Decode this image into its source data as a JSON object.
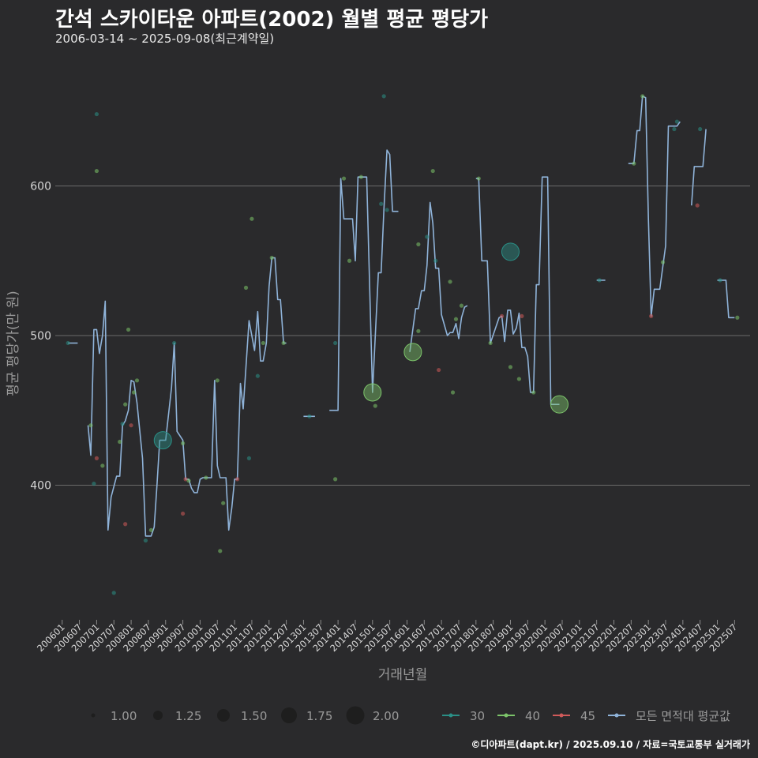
{
  "title": "간석 스카이타운 아파트(2002) 월별 평균 평당가",
  "subtitle": "2006-03-14 ~ 2025-09-08(최근계약일)",
  "footer": "©디아파트(dapt.kr) / 2025.09.10 / 자료=국토교통부 실거래가",
  "colors": {
    "background": "#2a2a2c",
    "grid": "#6a6a6a",
    "avg_line": "#8fb3d9",
    "s30": "#2a8f86",
    "s40": "#7cc46a",
    "s45": "#d05a5a"
  },
  "chart_data": {
    "type": "line",
    "xlabel": "거래년월",
    "ylabel": "평균 평당가(만 원)",
    "ylim": [
      310,
      690
    ],
    "yticks": [
      400,
      500,
      600
    ],
    "xlim": [
      2005.8,
      2025.95
    ],
    "grid": true,
    "x_tick_labels": [
      "200601",
      "200607",
      "200701",
      "200707",
      "200801",
      "200807",
      "200901",
      "200907",
      "201001",
      "201007",
      "201101",
      "201107",
      "201201",
      "201207",
      "201301",
      "201307",
      "201401",
      "201407",
      "201501",
      "201507",
      "201601",
      "201607",
      "201701",
      "201707",
      "201801",
      "201807",
      "201901",
      "201907",
      "202001",
      "202007",
      "202101",
      "202107",
      "202201",
      "202207",
      "202301",
      "202307",
      "202401",
      "202407",
      "202501",
      "202507"
    ],
    "legend_size": {
      "values": [
        "1.00",
        "1.25",
        "1.50",
        "1.75",
        "2.00"
      ]
    },
    "legend_series": [
      "30",
      "40",
      "45",
      "모든 면적대 평균값"
    ],
    "avg_series": {
      "name": "모든 면적대 평균값",
      "segments": [
        [
          [
            2006.17,
            495
          ],
          [
            2006.45,
            495
          ]
        ],
        [
          [
            2006.75,
            440
          ],
          [
            2006.83,
            420
          ],
          [
            2006.92,
            504
          ],
          [
            2007.0,
            504
          ],
          [
            2007.08,
            488
          ],
          [
            2007.17,
            500
          ],
          [
            2007.25,
            523
          ],
          [
            2007.33,
            370
          ],
          [
            2007.42,
            392
          ],
          [
            2007.58,
            406
          ],
          [
            2007.67,
            406
          ],
          [
            2007.75,
            440
          ],
          [
            2007.83,
            443
          ],
          [
            2007.92,
            450
          ],
          [
            2008.0,
            470
          ],
          [
            2008.08,
            469
          ],
          [
            2008.17,
            455
          ],
          [
            2008.33,
            418
          ],
          [
            2008.42,
            366
          ],
          [
            2008.58,
            366
          ],
          [
            2008.67,
            372
          ],
          [
            2008.75,
            400
          ],
          [
            2008.83,
            430
          ],
          [
            2009.0,
            430
          ],
          [
            2009.17,
            465
          ],
          [
            2009.25,
            495
          ],
          [
            2009.33,
            436
          ],
          [
            2009.5,
            430
          ],
          [
            2009.58,
            404
          ],
          [
            2009.67,
            404
          ],
          [
            2009.75,
            398
          ],
          [
            2009.83,
            395
          ],
          [
            2009.92,
            395
          ],
          [
            2010.0,
            404
          ],
          [
            2010.08,
            405
          ],
          [
            2010.33,
            405
          ],
          [
            2010.42,
            470
          ],
          [
            2010.5,
            413
          ],
          [
            2010.58,
            405
          ],
          [
            2010.75,
            405
          ],
          [
            2010.83,
            370
          ],
          [
            2010.92,
            385
          ],
          [
            2011.0,
            404
          ],
          [
            2011.08,
            404
          ],
          [
            2011.17,
            468
          ],
          [
            2011.25,
            451
          ],
          [
            2011.42,
            510
          ],
          [
            2011.58,
            490
          ],
          [
            2011.67,
            516
          ],
          [
            2011.75,
            483
          ],
          [
            2011.83,
            483
          ],
          [
            2011.92,
            495
          ],
          [
            2012.0,
            533
          ],
          [
            2012.08,
            552
          ],
          [
            2012.17,
            552
          ],
          [
            2012.25,
            524
          ],
          [
            2012.33,
            524
          ],
          [
            2012.42,
            495
          ],
          [
            2012.5,
            495
          ]
        ],
        [
          [
            2013.0,
            446
          ],
          [
            2013.33,
            446
          ]
        ],
        [
          [
            2013.75,
            450
          ],
          [
            2014.0,
            450
          ],
          [
            2014.08,
            605
          ],
          [
            2014.17,
            578
          ],
          [
            2014.42,
            578
          ],
          [
            2014.5,
            550
          ],
          [
            2014.58,
            606
          ],
          [
            2014.83,
            606
          ],
          [
            2015.0,
            462
          ],
          [
            2015.17,
            542
          ],
          [
            2015.25,
            542
          ],
          [
            2015.33,
            584
          ],
          [
            2015.42,
            624
          ],
          [
            2015.5,
            621
          ],
          [
            2015.58,
            583
          ],
          [
            2015.75,
            583
          ]
        ],
        [
          [
            2016.08,
            489
          ],
          [
            2016.25,
            518
          ],
          [
            2016.33,
            518
          ],
          [
            2016.42,
            530
          ],
          [
            2016.5,
            530
          ],
          [
            2016.58,
            547
          ],
          [
            2016.67,
            589
          ],
          [
            2016.75,
            575
          ],
          [
            2016.83,
            545
          ],
          [
            2016.92,
            545
          ],
          [
            2017.0,
            514
          ],
          [
            2017.17,
            500
          ],
          [
            2017.25,
            502
          ],
          [
            2017.33,
            502
          ],
          [
            2017.42,
            508
          ],
          [
            2017.5,
            498
          ],
          [
            2017.58,
            512
          ],
          [
            2017.67,
            519
          ],
          [
            2017.75,
            520
          ]
        ],
        [
          [
            2018.0,
            605
          ],
          [
            2018.08,
            605
          ],
          [
            2018.17,
            550
          ],
          [
            2018.33,
            550
          ],
          [
            2018.42,
            495
          ],
          [
            2018.67,
            512
          ],
          [
            2018.75,
            513
          ],
          [
            2018.83,
            496
          ],
          [
            2018.92,
            517
          ],
          [
            2019.0,
            517
          ],
          [
            2019.08,
            501
          ],
          [
            2019.17,
            505
          ],
          [
            2019.25,
            515
          ],
          [
            2019.33,
            492
          ],
          [
            2019.42,
            492
          ],
          [
            2019.5,
            486
          ],
          [
            2019.58,
            462
          ],
          [
            2019.67,
            462
          ],
          [
            2019.75,
            534
          ],
          [
            2019.83,
            534
          ],
          [
            2019.92,
            606
          ],
          [
            2020.08,
            606
          ],
          [
            2020.17,
            454
          ],
          [
            2020.42,
            454
          ]
        ],
        [
          [
            2021.5,
            537
          ],
          [
            2021.75,
            537
          ]
        ],
        [
          [
            2022.42,
            615
          ],
          [
            2022.58,
            615
          ],
          [
            2022.67,
            637
          ],
          [
            2022.75,
            637
          ],
          [
            2022.83,
            660
          ],
          [
            2022.92,
            659
          ],
          [
            2023.0,
            578
          ],
          [
            2023.08,
            513
          ],
          [
            2023.17,
            531
          ],
          [
            2023.33,
            531
          ],
          [
            2023.5,
            560
          ],
          [
            2023.58,
            640
          ],
          [
            2023.75,
            640
          ],
          [
            2023.83,
            640
          ],
          [
            2023.92,
            643
          ]
        ],
        [
          [
            2024.25,
            587
          ],
          [
            2024.33,
            613
          ],
          [
            2024.58,
            613
          ],
          [
            2024.67,
            638
          ]
        ],
        [
          [
            2025.0,
            537
          ],
          [
            2025.25,
            537
          ],
          [
            2025.33,
            512
          ],
          [
            2025.5,
            512
          ]
        ]
      ]
    },
    "points": [
      {
        "series": "30",
        "x": 2006.17,
        "y": 495,
        "n": 1
      },
      {
        "series": "40",
        "x": 2006.83,
        "y": 440,
        "n": 1
      },
      {
        "series": "30",
        "x": 2006.92,
        "y": 401,
        "n": 1
      },
      {
        "series": "30",
        "x": 2007.0,
        "y": 648,
        "n": 1
      },
      {
        "series": "40",
        "x": 2007.0,
        "y": 610,
        "n": 1
      },
      {
        "series": "45",
        "x": 2007.0,
        "y": 418,
        "n": 1
      },
      {
        "series": "40",
        "x": 2007.17,
        "y": 413,
        "n": 1
      },
      {
        "series": "30",
        "x": 2007.5,
        "y": 328,
        "n": 1
      },
      {
        "series": "40",
        "x": 2007.67,
        "y": 429,
        "n": 1
      },
      {
        "series": "30",
        "x": 2007.75,
        "y": 441,
        "n": 1
      },
      {
        "series": "40",
        "x": 2007.83,
        "y": 454,
        "n": 1
      },
      {
        "series": "45",
        "x": 2007.83,
        "y": 374,
        "n": 1
      },
      {
        "series": "40",
        "x": 2007.92,
        "y": 504,
        "n": 1
      },
      {
        "series": "45",
        "x": 2008.0,
        "y": 440,
        "n": 1
      },
      {
        "series": "40",
        "x": 2008.08,
        "y": 462,
        "n": 1
      },
      {
        "series": "40",
        "x": 2008.17,
        "y": 470,
        "n": 1
      },
      {
        "series": "30",
        "x": 2008.42,
        "y": 363,
        "n": 1
      },
      {
        "series": "40",
        "x": 2008.58,
        "y": 370,
        "n": 1
      },
      {
        "series": "30",
        "x": 2008.92,
        "y": 430,
        "n": 2
      },
      {
        "series": "30",
        "x": 2009.25,
        "y": 495,
        "n": 1
      },
      {
        "series": "40",
        "x": 2009.5,
        "y": 428,
        "n": 1
      },
      {
        "series": "45",
        "x": 2009.5,
        "y": 381,
        "n": 1
      },
      {
        "series": "45",
        "x": 2009.58,
        "y": 404,
        "n": 1
      },
      {
        "series": "40",
        "x": 2009.67,
        "y": 403,
        "n": 1
      },
      {
        "series": "40",
        "x": 2010.17,
        "y": 405,
        "n": 1
      },
      {
        "series": "40",
        "x": 2010.5,
        "y": 470,
        "n": 1
      },
      {
        "series": "40",
        "x": 2010.58,
        "y": 356,
        "n": 1
      },
      {
        "series": "40",
        "x": 2010.67,
        "y": 388,
        "n": 1
      },
      {
        "series": "45",
        "x": 2011.08,
        "y": 404,
        "n": 1
      },
      {
        "series": "40",
        "x": 2011.33,
        "y": 532,
        "n": 1
      },
      {
        "series": "30",
        "x": 2011.42,
        "y": 418,
        "n": 1
      },
      {
        "series": "40",
        "x": 2011.5,
        "y": 578,
        "n": 1
      },
      {
        "series": "30",
        "x": 2011.67,
        "y": 473,
        "n": 1
      },
      {
        "series": "40",
        "x": 2011.83,
        "y": 495,
        "n": 1
      },
      {
        "series": "40",
        "x": 2012.08,
        "y": 552,
        "n": 1
      },
      {
        "series": "40",
        "x": 2012.42,
        "y": 495,
        "n": 1
      },
      {
        "series": "30",
        "x": 2013.17,
        "y": 446,
        "n": 1
      },
      {
        "series": "40",
        "x": 2013.92,
        "y": 404,
        "n": 1
      },
      {
        "series": "30",
        "x": 2013.92,
        "y": 495,
        "n": 1
      },
      {
        "series": "40",
        "x": 2014.17,
        "y": 605,
        "n": 1
      },
      {
        "series": "40",
        "x": 2014.33,
        "y": 550,
        "n": 1
      },
      {
        "series": "40",
        "x": 2014.67,
        "y": 606,
        "n": 1
      },
      {
        "series": "40",
        "x": 2015.08,
        "y": 453,
        "n": 1
      },
      {
        "series": "40",
        "x": 2015.0,
        "y": 462,
        "n": 2
      },
      {
        "series": "30",
        "x": 2015.25,
        "y": 588,
        "n": 1
      },
      {
        "series": "30",
        "x": 2015.33,
        "y": 660,
        "n": 1
      },
      {
        "series": "30",
        "x": 2015.42,
        "y": 584,
        "n": 1
      },
      {
        "series": "40",
        "x": 2016.17,
        "y": 489,
        "n": 2
      },
      {
        "series": "40",
        "x": 2016.33,
        "y": 561,
        "n": 1
      },
      {
        "series": "40",
        "x": 2016.33,
        "y": 503,
        "n": 1
      },
      {
        "series": "30",
        "x": 2016.58,
        "y": 566,
        "n": 1
      },
      {
        "series": "40",
        "x": 2016.75,
        "y": 610,
        "n": 1
      },
      {
        "series": "30",
        "x": 2016.83,
        "y": 550,
        "n": 1
      },
      {
        "series": "45",
        "x": 2016.92,
        "y": 477,
        "n": 1
      },
      {
        "series": "40",
        "x": 2017.25,
        "y": 536,
        "n": 1
      },
      {
        "series": "40",
        "x": 2017.33,
        "y": 462,
        "n": 1
      },
      {
        "series": "40",
        "x": 2017.42,
        "y": 511,
        "n": 1
      },
      {
        "series": "40",
        "x": 2017.58,
        "y": 520,
        "n": 1
      },
      {
        "series": "40",
        "x": 2018.08,
        "y": 605,
        "n": 1
      },
      {
        "series": "40",
        "x": 2018.42,
        "y": 495,
        "n": 1
      },
      {
        "series": "45",
        "x": 2018.75,
        "y": 513,
        "n": 1
      },
      {
        "series": "30",
        "x": 2019.0,
        "y": 556,
        "n": 2
      },
      {
        "series": "40",
        "x": 2019.0,
        "y": 479,
        "n": 1
      },
      {
        "series": "40",
        "x": 2019.25,
        "y": 471,
        "n": 1
      },
      {
        "series": "45",
        "x": 2019.33,
        "y": 513,
        "n": 1
      },
      {
        "series": "40",
        "x": 2019.67,
        "y": 462,
        "n": 1
      },
      {
        "series": "40",
        "x": 2020.42,
        "y": 454,
        "n": 2
      },
      {
        "series": "30",
        "x": 2021.58,
        "y": 537,
        "n": 1
      },
      {
        "series": "40",
        "x": 2022.58,
        "y": 615,
        "n": 1
      },
      {
        "series": "40",
        "x": 2022.83,
        "y": 660,
        "n": 1
      },
      {
        "series": "45",
        "x": 2023.08,
        "y": 513,
        "n": 1
      },
      {
        "series": "40",
        "x": 2023.42,
        "y": 549,
        "n": 1
      },
      {
        "series": "30",
        "x": 2023.75,
        "y": 638,
        "n": 1
      },
      {
        "series": "30",
        "x": 2023.83,
        "y": 643,
        "n": 1
      },
      {
        "series": "45",
        "x": 2024.42,
        "y": 587,
        "n": 1
      },
      {
        "series": "30",
        "x": 2024.5,
        "y": 638,
        "n": 1
      },
      {
        "series": "30",
        "x": 2025.08,
        "y": 537,
        "n": 1
      },
      {
        "series": "40",
        "x": 2025.58,
        "y": 512,
        "n": 1
      }
    ]
  }
}
